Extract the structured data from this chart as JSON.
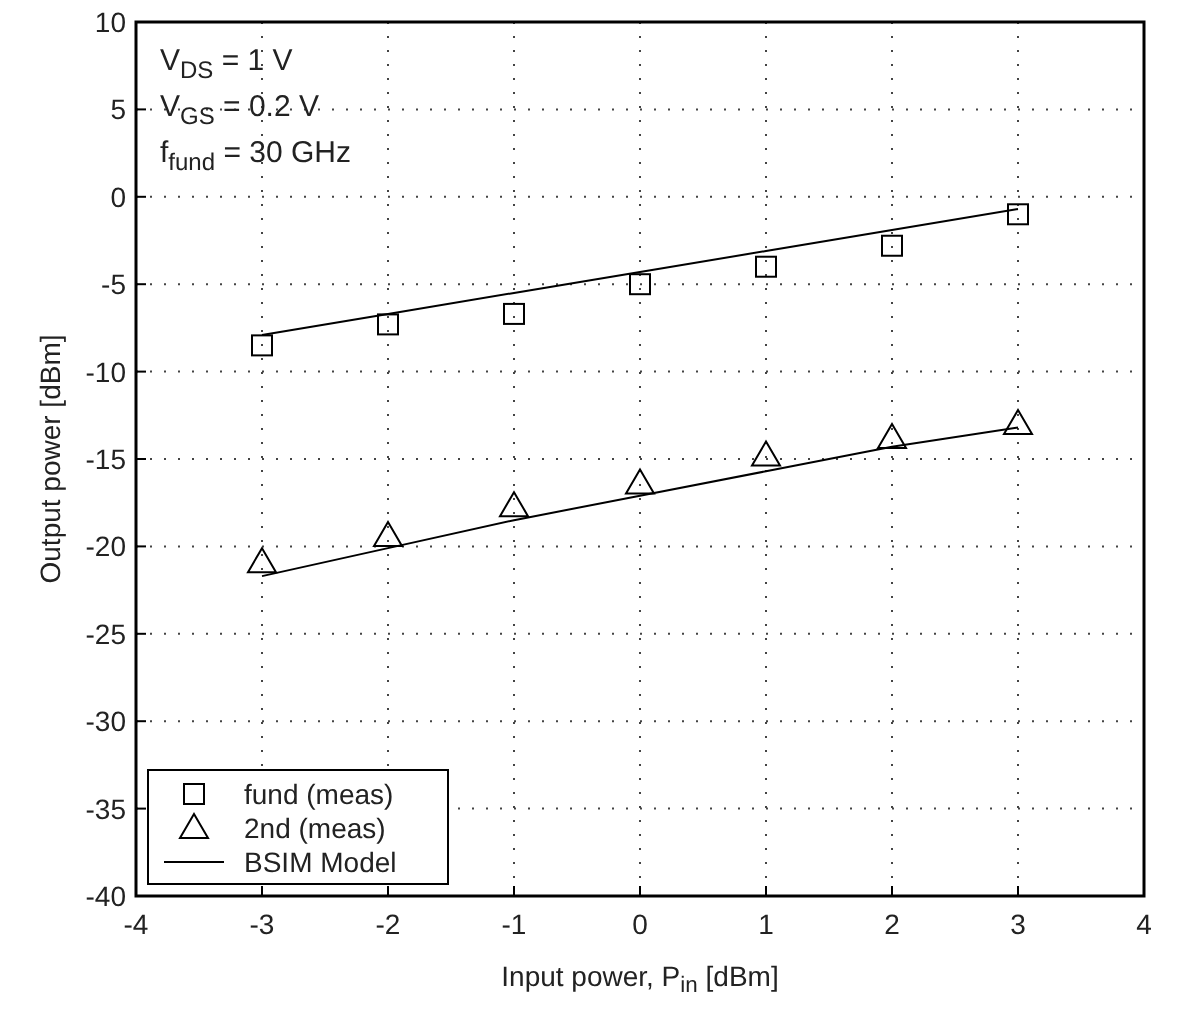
{
  "chart_data": {
    "type": "scatter",
    "xlabel": "Input power, P$_{in}$ [dBm]",
    "ylabel": "Output power [dBm]",
    "x": [
      -3,
      -2,
      -1,
      0,
      1,
      2,
      3
    ],
    "series": [
      {
        "name": "fund (meas)",
        "marker": "square",
        "color": "#000000",
        "values": [
          -8.5,
          -7.3,
          -6.7,
          -5.0,
          -4.0,
          -2.8,
          -1.0
        ]
      },
      {
        "name": "2nd (meas)",
        "marker": "triangle",
        "color": "#000000",
        "values": [
          -20.9,
          -19.4,
          -17.7,
          -16.4,
          -14.8,
          -13.8,
          -13.0
        ]
      },
      {
        "name": "BSIM Model",
        "type": "line",
        "marker": "none",
        "line_style": "solid",
        "color": "#000000",
        "values": [
          -7.9,
          -6.7,
          -5.5,
          -4.3,
          -3.1,
          -1.9,
          -0.7
        ]
      },
      {
        "type": "line",
        "marker": "none",
        "line_style": "solid",
        "color": "#000000",
        "values": [
          -21.7,
          -20.1,
          -18.5,
          -17.1,
          -15.7,
          -14.3,
          -13.2
        ]
      }
    ],
    "xlim": [
      -4,
      4
    ],
    "xticks": [
      -4,
      -3,
      -2,
      -1,
      0,
      1,
      2,
      3,
      4
    ],
    "ylim": [
      -40,
      10
    ],
    "yticks": [
      -40,
      -35,
      -30,
      -25,
      -20,
      -15,
      -10,
      -5,
      0,
      5,
      10
    ],
    "grid": true,
    "legend": "bottom left",
    "annotations": [
      "V$_{DS}$ = 1 V",
      "V$_{GS}$ = 0.2 V",
      "f$_{fund}$ = 30 GHz"
    ]
  }
}
